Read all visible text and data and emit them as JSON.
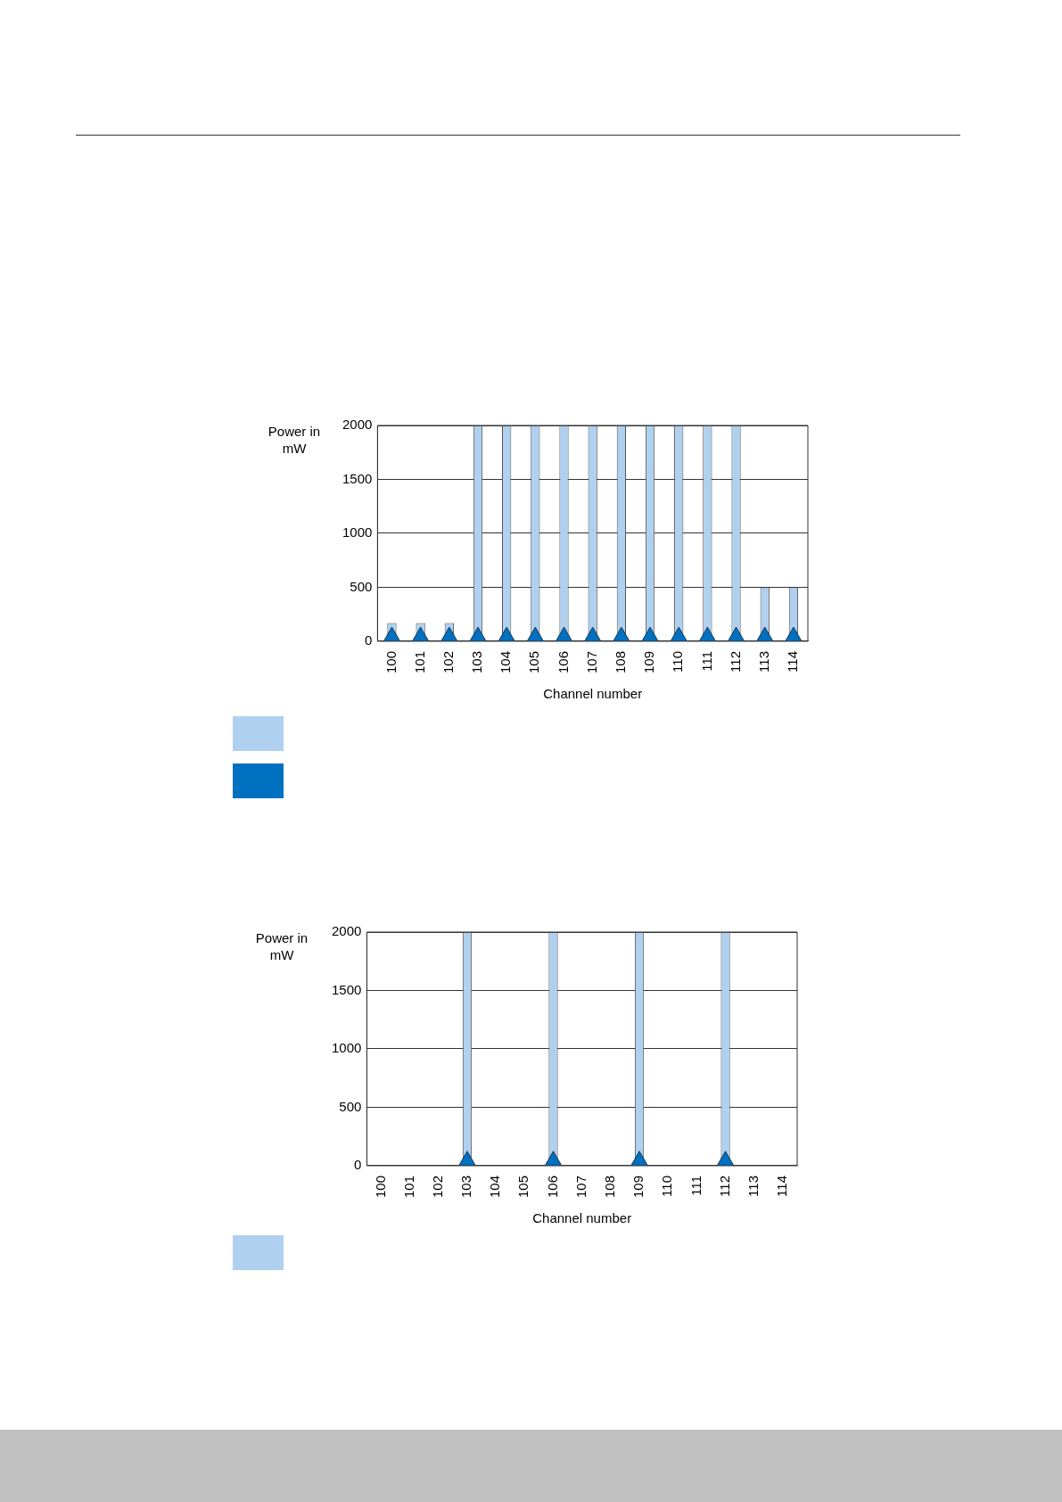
{
  "chart_data": [
    {
      "type": "bar",
      "xlabel": "Channel number",
      "ylabel": "Power in mW",
      "categories": [
        "100",
        "101",
        "102",
        "103",
        "104",
        "105",
        "106",
        "107",
        "108",
        "109",
        "110",
        "111",
        "112",
        "113",
        "114"
      ],
      "ylim": [
        0,
        2000
      ],
      "yticks": [
        0,
        500,
        1000,
        1500,
        2000
      ],
      "grid": "y",
      "marker": "triangle",
      "series": [
        {
          "color": "#b0d0f0",
          "values": [
            170,
            170,
            170,
            2000,
            2000,
            2000,
            2000,
            2000,
            2000,
            2000,
            2000,
            2000,
            2000,
            500,
            500
          ]
        },
        {
          "type": "scatter",
          "color": "#0070c0",
          "values": [
            40,
            40,
            40,
            40,
            40,
            40,
            40,
            40,
            40,
            40,
            40,
            40,
            40,
            40,
            40
          ]
        }
      ]
    },
    {
      "type": "bar",
      "xlabel": "Channel number",
      "ylabel": "Power in mW",
      "categories": [
        "100",
        "101",
        "102",
        "103",
        "104",
        "105",
        "106",
        "107",
        "108",
        "109",
        "110",
        "111",
        "112",
        "113",
        "114"
      ],
      "ylim": [
        0,
        2000
      ],
      "yticks": [
        0,
        500,
        1000,
        1500,
        2000
      ],
      "grid": "y",
      "marker": "triangle",
      "series": [
        {
          "color": "#b0d0f0",
          "values": [
            null,
            null,
            null,
            2000,
            null,
            null,
            2000,
            null,
            null,
            2000,
            null,
            null,
            2000,
            null,
            null
          ]
        },
        {
          "type": "scatter",
          "color": "#0070c0",
          "values": [
            null,
            null,
            null,
            40,
            null,
            null,
            40,
            null,
            null,
            40,
            null,
            null,
            40,
            null,
            null
          ]
        }
      ]
    }
  ]
}
